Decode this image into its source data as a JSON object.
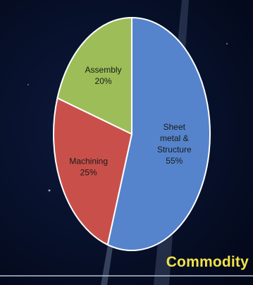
{
  "chart_data": {
    "type": "pie",
    "title": "Commodity",
    "slices": [
      {
        "label_lines": [
          "Sheet",
          "metal &",
          "Structure"
        ],
        "value_label": "55%",
        "value": 55,
        "color": "#5584cc"
      },
      {
        "label_lines": [
          "Machining"
        ],
        "value_label": "25%",
        "value": 25,
        "color": "#c9504a"
      },
      {
        "label_lines": [
          "Assembly"
        ],
        "value_label": "20%",
        "value": 20,
        "color": "#9cbd57"
      }
    ],
    "legend": "none"
  }
}
